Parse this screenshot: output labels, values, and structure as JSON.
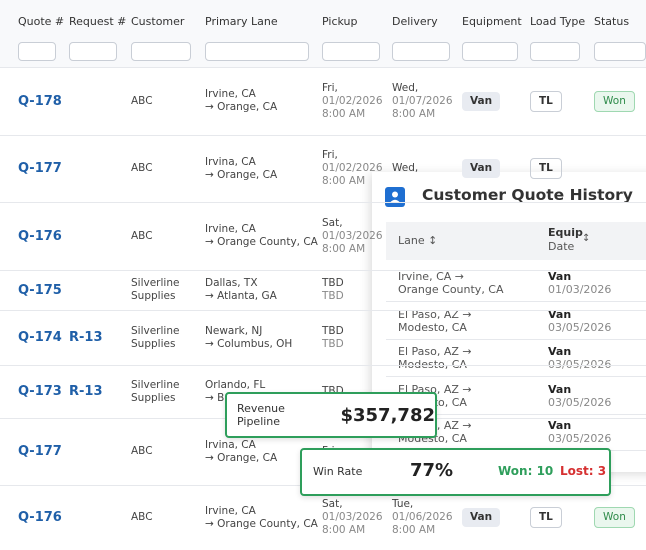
{
  "table": {
    "headers": [
      "Quote #",
      "Request #",
      "Customer",
      "Primary Lane",
      "Pickup",
      "Delivery",
      "Equipment",
      "Load Type",
      "Status"
    ],
    "rows": [
      {
        "quote": "Q-178",
        "customer": [
          "ABC"
        ],
        "lane": [
          "Irvine, CA",
          "→ Orange, CA"
        ],
        "pickup": [
          "Fri,",
          "01/02/2026",
          "8:00 AM"
        ],
        "delivery": [
          "Wed,",
          "01/07/2026",
          "8:00 AM"
        ],
        "equipment": "Van",
        "load_type": "TL",
        "status": "Won"
      },
      {
        "quote": "Q-177",
        "customer": [
          "ABC"
        ],
        "lane": [
          "Irvina, CA",
          "→ Orange, CA"
        ],
        "pickup": [
          "Fri,",
          "01/02/2026",
          "8:00 AM"
        ],
        "delivery": [
          "Wed,"
        ],
        "equipment": "Van",
        "load_type": "TL"
      },
      {
        "quote": "Q-176",
        "customer": [
          "ABC"
        ],
        "lane": [
          "Irvine, CA",
          "→ Orange County, CA"
        ],
        "pickup": [
          "Sat,",
          "01/03/2026",
          "8:00 AM"
        ]
      },
      {
        "quote": "Q-175",
        "customer": [
          "Silverline",
          "Supplies"
        ],
        "lane": [
          "Dallas, TX",
          "→ Atlanta, GA"
        ],
        "pickup": [
          "TBD",
          "TBD"
        ]
      },
      {
        "quote": "Q-174",
        "request": "R-13",
        "customer": [
          "Silverline",
          "Supplies"
        ],
        "lane": [
          "Newark, NJ",
          "→ Columbus, OH"
        ],
        "pickup": [
          "TBD",
          "TBD"
        ]
      },
      {
        "quote": "Q-173",
        "request": "R-13",
        "customer": [
          "Silverline",
          "Supplies"
        ],
        "lane": [
          "Orlando, FL",
          "→ B"
        ],
        "pickup": [
          "TBD"
        ]
      },
      {
        "quote": "Q-177",
        "customer": [
          "ABC"
        ],
        "lane": [
          "Irvina, CA",
          "→ Orange, CA"
        ],
        "pickup": [
          "Fri,"
        ]
      },
      {
        "quote": "Q-176",
        "customer": [
          "ABC"
        ],
        "lane": [
          "Irvine, CA",
          "→ Orange County, CA"
        ],
        "pickup": [
          "Sat,",
          "01/03/2026",
          "8:00 AM"
        ],
        "delivery": [
          "Tue,",
          "01/06/2026",
          "8:00 AM"
        ],
        "equipment": "Van",
        "load_type": "TL",
        "status": "Won"
      }
    ]
  },
  "history": {
    "title": "Customer Quote History",
    "headers": {
      "lane": "Lane",
      "equip": "Equip",
      "date": "Date"
    },
    "rows": [
      {
        "lane": [
          "Irvine, CA →",
          "Orange County, CA"
        ],
        "equip": "Van",
        "date": "01/03/2026"
      },
      {
        "lane": [
          "El Paso, AZ →",
          "Modesto, CA"
        ],
        "equip": "Van",
        "date": "03/05/2026"
      },
      {
        "lane": [
          "El Paso, AZ →",
          "Modesto, CA"
        ],
        "equip": "Van",
        "date": "03/05/2026"
      },
      {
        "lane": [
          "El Paso, AZ →",
          "Modesto, CA"
        ],
        "equip": "Van",
        "date": "03/05/2026"
      },
      {
        "lane": [
          "El Paso, AZ →",
          "Modesto, CA"
        ],
        "equip": "Van",
        "date": "03/05/2026"
      }
    ]
  },
  "revenue": {
    "label": "Revenue Pipeline",
    "value": "$357,782"
  },
  "win_rate": {
    "label": "Win Rate",
    "value": "77%",
    "won": "Won: 10",
    "lost": "Lost: 3"
  }
}
